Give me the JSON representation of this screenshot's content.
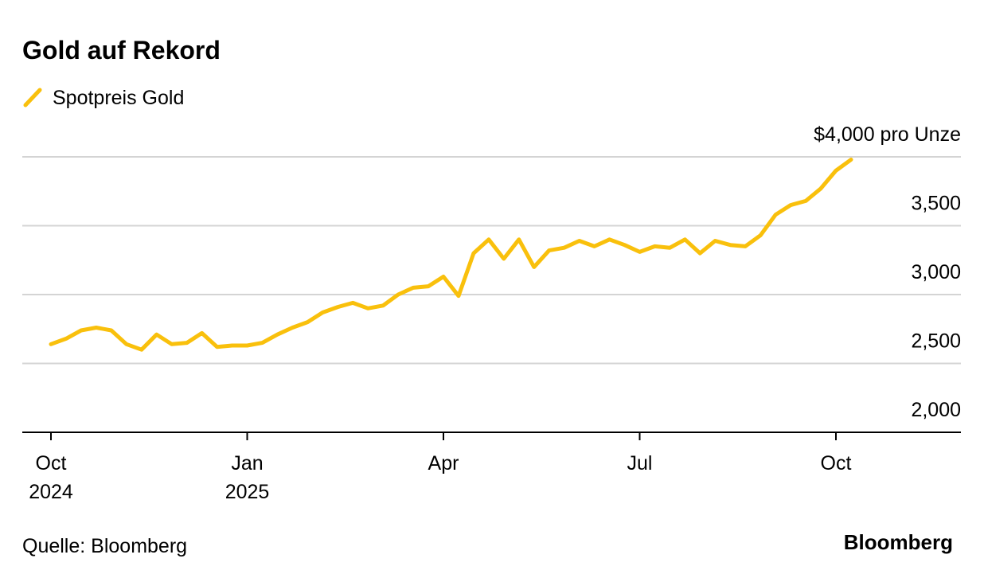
{
  "chart_data": {
    "type": "line",
    "title": "Gold auf Rekord",
    "source": "Quelle: Bloomberg",
    "brand": "Bloomberg",
    "categories": [
      "Oct 2024",
      null,
      null,
      null,
      null,
      null,
      null,
      null,
      null,
      null,
      null,
      null,
      null,
      "Jan 2025",
      null,
      null,
      null,
      null,
      null,
      null,
      null,
      null,
      null,
      null,
      null,
      null,
      "Apr",
      null,
      null,
      null,
      null,
      null,
      null,
      null,
      null,
      null,
      null,
      null,
      null,
      "Jul",
      null,
      null,
      null,
      null,
      null,
      null,
      null,
      null,
      null,
      null,
      null,
      null,
      "Oct",
      null
    ],
    "series": [
      {
        "name": "Spotpreis Gold",
        "color": "#f9c00c",
        "values": [
          2640,
          2680,
          2740,
          2760,
          2740,
          2640,
          2600,
          2710,
          2640,
          2650,
          2720,
          2620,
          2630,
          2630,
          2650,
          2710,
          2760,
          2800,
          2870,
          2910,
          2940,
          2900,
          2920,
          3000,
          3050,
          3060,
          3130,
          2990,
          3300,
          3400,
          3260,
          3400,
          3200,
          3320,
          3340,
          3390,
          3350,
          3400,
          3360,
          3310,
          3350,
          3340,
          3400,
          3300,
          3390,
          3360,
          3350,
          3430,
          3580,
          3650,
          3680,
          3770,
          3900,
          3980
        ]
      }
    ],
    "ylim": [
      2000,
      4000
    ],
    "yticks": [
      {
        "value": 2000,
        "label": "2,000"
      },
      {
        "value": 2500,
        "label": "2,500"
      },
      {
        "value": 3000,
        "label": "3,000"
      },
      {
        "value": 3500,
        "label": "3,500"
      },
      {
        "value": 4000,
        "label": "$4,000 pro Unze"
      }
    ],
    "grid": true
  }
}
